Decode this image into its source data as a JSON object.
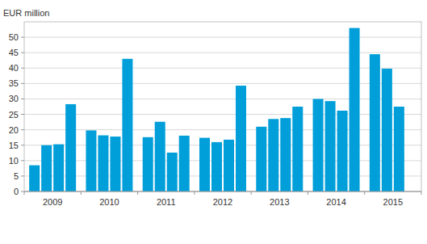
{
  "chart_data": {
    "type": "bar",
    "y_label": "EUR million",
    "categories": [
      "2009",
      "2010",
      "2011",
      "2012",
      "2013",
      "2014",
      "2015"
    ],
    "series": [
      {
        "color": "#009fda",
        "values": [
          8.5,
          19.8,
          17.6,
          17.4,
          21,
          30,
          44.5
        ]
      },
      {
        "color": "#009fda",
        "values": [
          15,
          18.2,
          22.6,
          16,
          23.5,
          29.3,
          39.8
        ]
      },
      {
        "color": "#009fda",
        "values": [
          15.3,
          17.8,
          12.6,
          16.8,
          23.8,
          26.2,
          27.5
        ]
      },
      {
        "color": "#009fda",
        "values": [
          28.3,
          43,
          18.1,
          34.3,
          27.5,
          53,
          null
        ]
      }
    ],
    "ylim": [
      0,
      55
    ],
    "yticks": [
      0,
      5,
      10,
      15,
      20,
      25,
      30,
      35,
      40,
      45,
      50
    ],
    "grid": true
  }
}
